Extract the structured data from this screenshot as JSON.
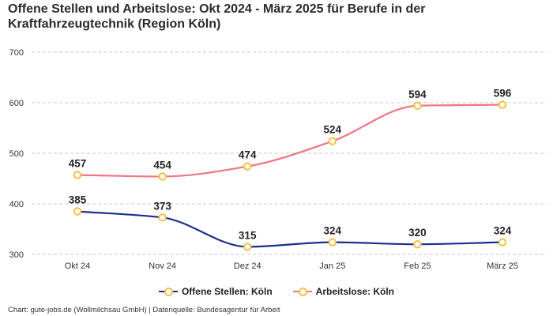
{
  "chart_data": {
    "type": "line",
    "title": "Offene Stellen und Arbeitslose: Okt 2024 - März 2025 für Berufe in der Kraftfahrzeugtechnik (Region Köln)",
    "categories": [
      "Okt 24",
      "Nov 24",
      "Dez 24",
      "Jan 25",
      "Feb 25",
      "März 25"
    ],
    "yticks": [
      "700",
      "600",
      "500",
      "400",
      "300"
    ],
    "ylim": [
      300,
      700
    ],
    "xlabel": "",
    "ylabel": "",
    "grid": true,
    "legend_position": "bottom-center",
    "series": [
      {
        "name": "Offene Stellen: Köln",
        "color": "#1a2f8f",
        "values": [
          385,
          373,
          315,
          324,
          320,
          324
        ],
        "labels": [
          "385",
          "373",
          "315",
          "324",
          "320",
          "324"
        ]
      },
      {
        "name": "Arbeitslose: Köln",
        "color": "#f27482",
        "values": [
          457,
          454,
          474,
          524,
          594,
          596
        ],
        "labels": [
          "457",
          "454",
          "474",
          "524",
          "594",
          "596"
        ]
      }
    ],
    "marker_color": "#f4c244"
  },
  "footer": {
    "source": "Chart: gute-jobs.de (Wollmilchsau GmbH) | Datenquelle: Bundesagentur für Arbeit"
  }
}
